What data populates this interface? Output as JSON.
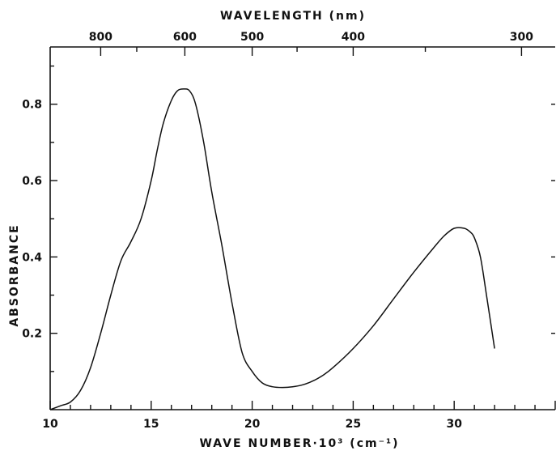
{
  "chart_data": {
    "type": "line",
    "title": "",
    "xlabel": "WAVE NUMBER·10³ (cm⁻¹)",
    "ylabel": "ABSORBANCE",
    "top_xlabel": "WAVELENGTH (nm)",
    "xlim": [
      10,
      35
    ],
    "ylim": [
      0,
      0.95
    ],
    "grid": false,
    "legend": "none",
    "x_ticks": [
      10,
      15,
      20,
      25,
      30
    ],
    "x_tick_labels": [
      "10",
      "15",
      "20",
      "25",
      "30"
    ],
    "y_ticks": [
      0.2,
      0.4,
      0.6,
      0.8
    ],
    "y_tick_labels": [
      "0.2",
      "0.4",
      "0.6",
      "0.8"
    ],
    "top_ticks_nm": [
      800,
      600,
      500,
      400,
      300
    ],
    "top_tick_labels": [
      "800",
      "600",
      "500",
      "400",
      "300"
    ],
    "series": [
      {
        "x": [
          10.0,
          10.5,
          11.0,
          11.5,
          12.0,
          12.5,
          13.0,
          13.5,
          14.0,
          14.5,
          15.0,
          15.3,
          15.6,
          16.0,
          16.3,
          16.6,
          16.9,
          17.2,
          17.6,
          18.0,
          18.5,
          19.0,
          19.5,
          20.0,
          20.5,
          21.0,
          21.5,
          22.0,
          22.5,
          23.0,
          23.5,
          24.0,
          25.0,
          26.0,
          27.0,
          28.0,
          29.0,
          29.5,
          30.0,
          30.5,
          30.8,
          31.0,
          31.3,
          31.6,
          32.0
        ],
        "y": [
          0.0,
          0.01,
          0.02,
          0.05,
          0.11,
          0.2,
          0.3,
          0.39,
          0.44,
          0.5,
          0.6,
          0.68,
          0.75,
          0.81,
          0.835,
          0.84,
          0.835,
          0.8,
          0.7,
          0.57,
          0.43,
          0.28,
          0.15,
          0.1,
          0.07,
          0.06,
          0.058,
          0.06,
          0.065,
          0.075,
          0.09,
          0.11,
          0.16,
          0.22,
          0.29,
          0.36,
          0.425,
          0.455,
          0.475,
          0.475,
          0.465,
          0.45,
          0.4,
          0.3,
          0.16
        ]
      }
    ]
  }
}
